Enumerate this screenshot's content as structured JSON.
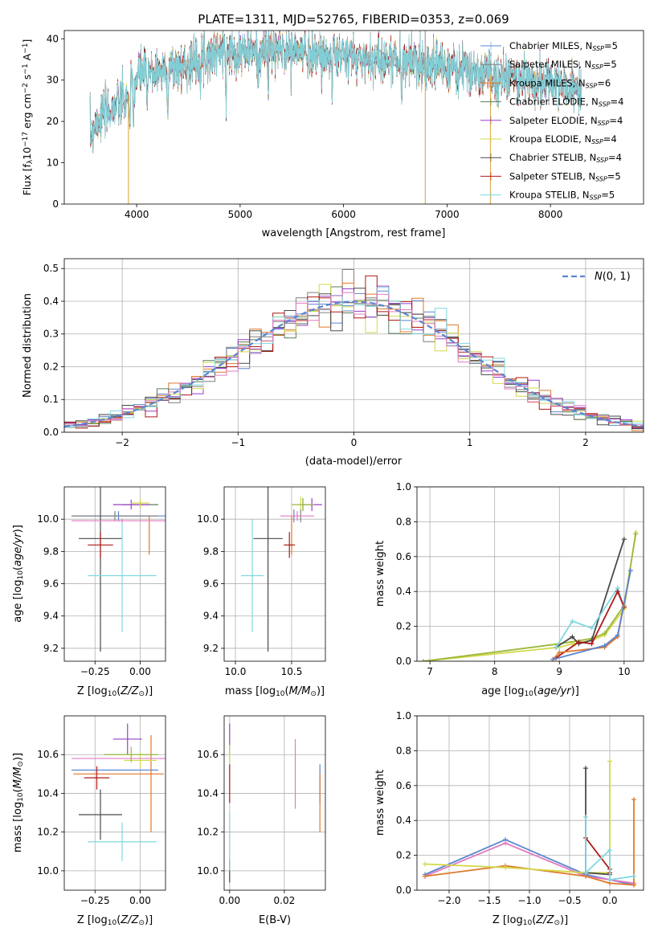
{
  "figure_title": "PLATE=1311, MJD=52765, FIBERID=0353, z=0.069",
  "colors": {
    "Chabrier MILES": "#5b85d0",
    "Salpeter MILES": "#7f7f7f",
    "Kroupa MILES": "#e0782a",
    "Chabrier ELODIE": "#5a7d5a",
    "Salpeter ELODIE": "#9b3fc7",
    "Kroupa ELODIE": "#d2d84a",
    "Chabrier STELIB": "#4a4a4a",
    "Salpeter STELIB": "#b01818",
    "Kroupa STELIB": "#80d8e0",
    "Pink": "#e07cc0",
    "Olive": "#9ab83a",
    "Normal": "#5b85d0"
  },
  "chart_data": [
    {
      "id": "spectrum",
      "type": "line",
      "title": "PLATE=1311, MJD=52765, FIBERID=0353, z=0.069",
      "xlabel": "wavelength [Angstrom, rest frame]",
      "ylabel_parts": [
        "Flux [f",
        "λ",
        "10",
        "−17",
        " erg cm",
        "−2",
        " s",
        "−1",
        " A",
        "−1",
        "]"
      ],
      "xlim": [
        3300,
        8900
      ],
      "ylim": [
        0,
        42
      ],
      "xticks": [
        4000,
        5000,
        6000,
        7000,
        8000
      ],
      "yticks": [
        0,
        10,
        20,
        30,
        40
      ],
      "legend": [
        {
          "name": "Chabrier MILES",
          "nssp": "5"
        },
        {
          "name": "Salpeter MILES",
          "nssp": "5"
        },
        {
          "name": "Kroupa MILES",
          "nssp": "6"
        },
        {
          "name": "Chabrier ELODIE",
          "nssp": "4"
        },
        {
          "name": "Salpeter ELODIE",
          "nssp": "4"
        },
        {
          "name": "Kroupa ELODIE",
          "nssp": "4"
        },
        {
          "name": "Chabrier STELIB",
          "nssp": "4"
        },
        {
          "name": "Salpeter STELIB",
          "nssp": "5"
        },
        {
          "name": "Kroupa STELIB",
          "nssp": "5"
        }
      ],
      "legend_nssp_label": "SSP",
      "continuum": [
        [
          3550,
          16
        ],
        [
          3600,
          20
        ],
        [
          3700,
          22
        ],
        [
          3800,
          24
        ],
        [
          3900,
          25
        ],
        [
          3950,
          28
        ],
        [
          4050,
          32
        ],
        [
          4200,
          32
        ],
        [
          4400,
          33
        ],
        [
          4600,
          35
        ],
        [
          4800,
          37
        ],
        [
          5000,
          37
        ],
        [
          5200,
          37
        ],
        [
          5400,
          37
        ],
        [
          5600,
          37
        ],
        [
          5800,
          36
        ],
        [
          6000,
          36
        ],
        [
          6200,
          35
        ],
        [
          6500,
          35
        ],
        [
          6800,
          34
        ],
        [
          7000,
          33
        ],
        [
          7200,
          32
        ],
        [
          7500,
          31
        ],
        [
          7800,
          30
        ],
        [
          8000,
          29
        ],
        [
          8200,
          28
        ],
        [
          8300,
          27
        ]
      ],
      "absorption_lines": [
        3934,
        3969,
        4102,
        4300,
        4861,
        5175,
        5270,
        5890,
        6563
      ],
      "artifact_spikes": [
        [
          3920,
          0
        ],
        [
          6790,
          0
        ],
        [
          7420,
          0
        ]
      ]
    },
    {
      "id": "residuals",
      "type": "histogram",
      "xlabel": "(data-model)/error",
      "ylabel": "Normed distribution",
      "xlim": [
        -2.5,
        2.5
      ],
      "ylim": [
        0,
        0.53
      ],
      "xticks": [
        -2,
        -1,
        0,
        1,
        2
      ],
      "yticks": [
        0.0,
        0.1,
        0.2,
        0.3,
        0.4,
        0.5
      ],
      "legend_label": "N(0,1)",
      "bin_width": 0.1
    },
    {
      "id": "age_vs_Z",
      "type": "scatter",
      "xlabel": "Z [log10(Z/Z⊙)]",
      "ylabel": "age  [log10(age/yr)]",
      "xlim": [
        -0.42,
        0.14
      ],
      "ylim": [
        9.12,
        10.2
      ],
      "xticks": [
        -0.25,
        0.0
      ],
      "yticks": [
        9.2,
        9.4,
        9.6,
        9.8,
        10.0
      ],
      "points": [
        {
          "c": "Chabrier MILES",
          "x": -0.12,
          "y": 10.02,
          "xerr": 0.26,
          "yerr": 0.03
        },
        {
          "c": "Salpeter MILES",
          "x": -0.14,
          "y": 10.02,
          "xerr": 0.24,
          "yerr": 0.03
        },
        {
          "c": "Kroupa MILES",
          "x": 0.05,
          "y": 9.9,
          "xerr": 0.0,
          "yerr": 0.12
        },
        {
          "c": "Chabrier ELODIE",
          "x": 0.0,
          "y": 10.09,
          "xerr": 0.1,
          "yerr": 0.02
        },
        {
          "c": "Salpeter ELODIE",
          "x": -0.05,
          "y": 10.09,
          "xerr": 0.1,
          "yerr": 0.03
        },
        {
          "c": "Kroupa ELODIE",
          "x": 0.0,
          "y": 10.1,
          "xerr": 0.05,
          "yerr": 0.03
        },
        {
          "c": "Chabrier STELIB",
          "x": -0.22,
          "y": 9.88,
          "xerr": 0.12,
          "yerr": 0.7
        },
        {
          "c": "Salpeter STELIB",
          "x": -0.22,
          "y": 9.84,
          "xerr": 0.07,
          "yerr": 0.08
        },
        {
          "c": "Kroupa STELIB",
          "x": -0.1,
          "y": 9.65,
          "xerr": 0.19,
          "yerr": 0.35
        },
        {
          "c": "Pink",
          "x": -0.1,
          "y": 9.99,
          "xerr": 0.28,
          "yerr": 0.01
        }
      ]
    },
    {
      "id": "age_vs_mass",
      "type": "scatter",
      "xlabel": "mass [log10(M/M⊙)]",
      "ylabel": "",
      "xlim": [
        9.9,
        10.8
      ],
      "ylim": [
        9.12,
        10.2
      ],
      "xticks": [
        10.0,
        10.5
      ],
      "yticks": [
        9.2,
        9.4,
        9.6,
        9.8,
        10.0
      ],
      "points": [
        {
          "c": "Chabrier MILES",
          "x": 10.52,
          "y": 10.02,
          "xerr": 0.0,
          "yerr": 0.04
        },
        {
          "c": "Salpeter MILES",
          "x": 10.58,
          "y": 10.02,
          "xerr": 0.0,
          "yerr": 0.04
        },
        {
          "c": "Kroupa MILES",
          "x": 10.5,
          "y": 9.9,
          "xerr": 0.0,
          "yerr": 0.12
        },
        {
          "c": "Chabrier ELODIE",
          "x": 10.6,
          "y": 10.09,
          "xerr": 0.0,
          "yerr": 0.04
        },
        {
          "c": "Salpeter ELODIE",
          "x": 10.68,
          "y": 10.09,
          "xerr": 0.09,
          "yerr": 0.04
        },
        {
          "c": "Kroupa ELODIE",
          "x": 10.58,
          "y": 10.1,
          "xerr": 0.0,
          "yerr": 0.04
        },
        {
          "c": "Chabrier STELIB",
          "x": 10.29,
          "y": 9.88,
          "xerr": 0.13,
          "yerr": 0.7
        },
        {
          "c": "Salpeter STELIB",
          "x": 10.48,
          "y": 9.84,
          "xerr": 0.05,
          "yerr": 0.08
        },
        {
          "c": "Kroupa STELIB",
          "x": 10.15,
          "y": 9.65,
          "xerr": 0.1,
          "yerr": 0.35
        },
        {
          "c": "Pink",
          "x": 10.55,
          "y": 10.02,
          "xerr": 0.15,
          "yerr": 0.03
        },
        {
          "c": "Olive",
          "x": 10.6,
          "y": 10.09,
          "xerr": 0.1,
          "yerr": 0.04
        }
      ]
    },
    {
      "id": "massweight_vs_age",
      "type": "line",
      "xlabel": "age  [log10(age/yr)]",
      "ylabel": "mass weight",
      "xlim": [
        6.8,
        10.3
      ],
      "ylim": [
        0,
        1.0
      ],
      "xticks": [
        7,
        8,
        9,
        10
      ],
      "yticks": [
        0.0,
        0.2,
        0.4,
        0.6,
        0.8,
        1.0
      ],
      "series": [
        {
          "c": "Kroupa ELODIE",
          "x": [
            6.9,
            9.0,
            9.2,
            9.5,
            9.7,
            10.0,
            10.18
          ],
          "y": [
            0.0,
            0.08,
            0.1,
            0.12,
            0.15,
            0.3,
            0.74
          ]
        },
        {
          "c": "Olive",
          "x": [
            6.9,
            9.0,
            9.5,
            9.7,
            10.0,
            10.18
          ],
          "y": [
            0.0,
            0.1,
            0.13,
            0.16,
            0.32,
            0.73
          ]
        },
        {
          "c": "Chabrier STELIB",
          "x": [
            8.95,
            9.2,
            9.3,
            9.5,
            10.0
          ],
          "y": [
            0.08,
            0.14,
            0.1,
            0.12,
            0.7
          ]
        },
        {
          "c": "Kroupa STELIB",
          "x": [
            8.95,
            9.2,
            9.5,
            9.9,
            10.0
          ],
          "y": [
            0.08,
            0.23,
            0.19,
            0.42,
            0.31
          ]
        },
        {
          "c": "Salpeter STELIB",
          "x": [
            8.95,
            9.3,
            9.5,
            9.9,
            10.0
          ],
          "y": [
            0.02,
            0.11,
            0.1,
            0.4,
            0.31
          ]
        },
        {
          "c": "Kroupa MILES",
          "x": [
            8.9,
            9.0,
            9.7,
            9.9,
            10.1
          ],
          "y": [
            0.01,
            0.05,
            0.08,
            0.14,
            0.52
          ]
        },
        {
          "c": "Chabrier MILES",
          "x": [
            8.9,
            9.7,
            9.9,
            10.1
          ],
          "y": [
            0.01,
            0.09,
            0.15,
            0.52
          ]
        }
      ]
    },
    {
      "id": "mass_vs_Z",
      "type": "scatter",
      "xlabel": "Z [log10(Z/Z⊙)]",
      "ylabel": "mass [log10(M/M⊙)]",
      "xlim": [
        -0.42,
        0.14
      ],
      "ylim": [
        9.9,
        10.8
      ],
      "xticks": [
        -0.25,
        0.0
      ],
      "yticks": [
        10.0,
        10.2,
        10.4,
        10.6
      ],
      "points": [
        {
          "c": "Chabrier MILES",
          "x": -0.14,
          "y": 10.52,
          "xerr": 0.24,
          "yerr": 0.0
        },
        {
          "c": "Kroupa MILES",
          "x": -0.12,
          "y": 10.5,
          "xerr": 0.25,
          "yerr": 0.0
        },
        {
          "c": "Kroupa MILES",
          "x": 0.06,
          "y": 10.45,
          "xerr": 0.0,
          "yerr": 0.25
        },
        {
          "c": "Salpeter ELODIE",
          "x": -0.07,
          "y": 10.68,
          "xerr": 0.08,
          "yerr": 0.08
        },
        {
          "c": "Kroupa ELODIE",
          "x": 0.0,
          "y": 10.57,
          "xerr": 0.09,
          "yerr": 0.04
        },
        {
          "c": "Olive",
          "x": -0.05,
          "y": 10.6,
          "xerr": 0.15,
          "yerr": 0.04
        },
        {
          "c": "Chabrier STELIB",
          "x": -0.22,
          "y": 10.29,
          "xerr": 0.12,
          "yerr": 0.13
        },
        {
          "c": "Salpeter STELIB",
          "x": -0.24,
          "y": 10.48,
          "xerr": 0.07,
          "yerr": 0.06
        },
        {
          "c": "Kroupa STELIB",
          "x": -0.1,
          "y": 10.15,
          "xerr": 0.19,
          "yerr": 0.1
        },
        {
          "c": "Pink",
          "x": -0.12,
          "y": 10.58,
          "xerr": 0.26,
          "yerr": 0.0
        }
      ]
    },
    {
      "id": "mass_vs_EBV",
      "type": "scatter",
      "xlabel": "E(B-V)",
      "ylabel": "",
      "xlim": [
        -0.002,
        0.035
      ],
      "ylim": [
        9.9,
        10.8
      ],
      "xticks": [
        0.0,
        0.02
      ],
      "yticks": [
        10.0,
        10.2,
        10.4,
        10.6
      ],
      "points": [
        {
          "c": "Chabrier STELIB",
          "x": 0.0,
          "y": 10.0,
          "xerr": 0.0,
          "yerr": 0.06
        },
        {
          "c": "Kroupa STELIB",
          "x": 0.0,
          "y": 10.15,
          "xerr": 0.0,
          "yerr": 0.15
        },
        {
          "c": "Salpeter STELIB",
          "x": 0.0,
          "y": 10.45,
          "xerr": 0.0,
          "yerr": 0.1
        },
        {
          "c": "Salpeter ELODIE",
          "x": 0.0,
          "y": 10.68,
          "xerr": 0.0,
          "yerr": 0.08
        },
        {
          "c": "Kroupa ELODIE",
          "x": 0.0,
          "y": 10.6,
          "xerr": 0.0,
          "yerr": 0.05
        },
        {
          "c": "Pink",
          "x": 0.024,
          "y": 10.5,
          "xerr": 0.0,
          "yerr": 0.18
        },
        {
          "c": "Chabrier MILES",
          "x": 0.033,
          "y": 10.45,
          "xerr": 0.0,
          "yerr": 0.1
        },
        {
          "c": "Kroupa MILES",
          "x": 0.033,
          "y": 10.35,
          "xerr": 0.0,
          "yerr": 0.15
        }
      ]
    },
    {
      "id": "massweight_vs_Z",
      "type": "line",
      "xlabel": "Z [log10(Z/Z⊙)]",
      "ylabel": "mass weight",
      "xlim": [
        -2.4,
        0.42
      ],
      "ylim": [
        0,
        1.0
      ],
      "xticks": [
        -2.0,
        -1.5,
        -1.0,
        -0.5,
        0.0
      ],
      "yticks": [
        0.0,
        0.2,
        0.4,
        0.6,
        0.8,
        1.0
      ],
      "series": [
        {
          "c": "Chabrier MILES",
          "x": [
            -2.3,
            -1.3,
            -0.3,
            0.0,
            0.3
          ],
          "y": [
            0.09,
            0.29,
            0.09,
            0.06,
            0.03
          ]
        },
        {
          "c": "Pink",
          "x": [
            -2.3,
            -1.3,
            -0.3,
            0.0,
            0.3
          ],
          "y": [
            0.08,
            0.27,
            0.08,
            0.06,
            0.04
          ]
        },
        {
          "c": "Kroupa MILES",
          "x": [
            -2.3,
            -1.3,
            -0.3,
            0.0,
            0.3,
            0.3
          ],
          "y": [
            0.08,
            0.14,
            0.08,
            0.04,
            0.03,
            0.52
          ]
        },
        {
          "c": "Kroupa ELODIE",
          "x": [
            -2.3,
            -1.3,
            -0.3,
            0.0,
            0.0
          ],
          "y": [
            0.15,
            0.13,
            0.1,
            0.1,
            0.74
          ]
        },
        {
          "c": "Chabrier STELIB",
          "x": [
            -0.3,
            -0.3,
            0.0
          ],
          "y": [
            0.7,
            0.1,
            0.09
          ]
        },
        {
          "c": "Salpeter STELIB",
          "x": [
            -0.3,
            0.0,
            0.0
          ],
          "y": [
            0.3,
            0.12,
            0.1
          ]
        },
        {
          "c": "Kroupa STELIB",
          "x": [
            -0.3,
            -0.3,
            0.0,
            0.0,
            0.3
          ],
          "y": [
            0.42,
            0.1,
            0.23,
            0.06,
            0.08
          ]
        }
      ]
    }
  ]
}
